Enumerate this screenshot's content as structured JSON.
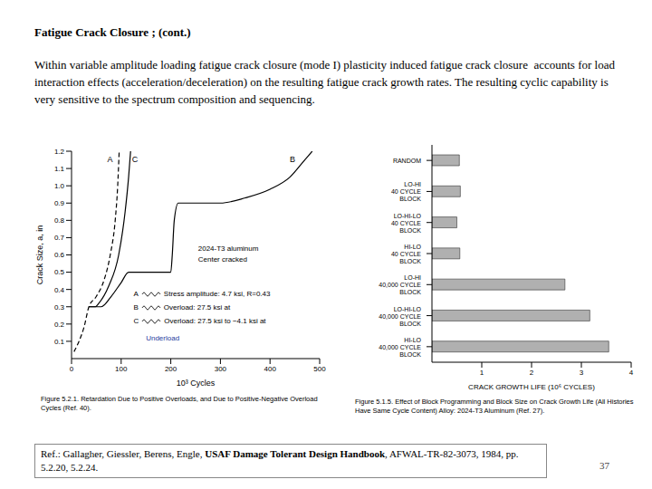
{
  "slide": {
    "title": "Fatigue Crack Closure ; (cont.)",
    "text": "Within variable amplitude loading fatigue crack closure (mode I) plasticity induced fatigue crack closure  accounts for load interaction effects (acceleration/deceleration) on the resulting fatigue crack growth rates. The resulting cyclic capability is very sensitive to the spectrum composition and sequencing.",
    "reference": {
      "authors": "Ref.: Gallagher, Giessler, Berens, Engle,",
      "book": "USAF Damage Tolerant Design Handbook",
      "rest": ", AFWAL-TR-82-3073, 1984, pp. 5.2.20, 5.2.24."
    },
    "page": 37
  },
  "chart_data": [
    {
      "type": "line",
      "x_label": "10³ Cycles",
      "y_label": "Crack Size, a, in",
      "caption": "Figure 5.2.1. Retardation Due to Positive Overloads, and Due to Positive-Negative Overload Cycles (Ref. 40).",
      "annotations": [
        "2024-T3 aluminum",
        "Center cracked",
        "Underload"
      ],
      "xlim": [
        0,
        500
      ],
      "xticks": [
        0,
        100,
        200,
        300,
        400,
        500
      ],
      "ylim": [
        0,
        1.2
      ],
      "yticks": [
        0.1,
        0.2,
        0.3,
        0.4,
        0.5,
        0.6,
        0.7,
        0.8,
        0.9,
        {
          "value": 1,
          "label": "1.0"
        },
        1.1,
        1.2
      ],
      "grid": false,
      "series": [
        {
          "name": "A",
          "description": "Stress amplitude: 4.7 ksi, R=0.43",
          "color": "#000000",
          "line_style": "dashed",
          "x": [
            5,
            15,
            25,
            35,
            50,
            65,
            78,
            88,
            93,
            96
          ],
          "values": [
            0.04,
            0.1,
            0.18,
            0.3,
            0.36,
            0.45,
            0.6,
            0.8,
            1.0,
            1.2
          ]
        },
        {
          "name": "B",
          "description": "Overload: 27.5 ksi at",
          "color": "#000000",
          "line_style": "solid",
          "x": [
            35,
            60,
            80,
            100,
            115,
            200,
            203,
            207,
            215,
            300,
            350,
            400,
            440,
            470,
            485
          ],
          "values": [
            0.3,
            0.3,
            0.36,
            0.44,
            0.5,
            0.5,
            0.6,
            0.8,
            0.9,
            0.9,
            0.93,
            0.98,
            1.05,
            1.15,
            1.2
          ]
        },
        {
          "name": "C",
          "description": "Overload: 27.5 ksi to −4.1 ksi at",
          "color": "#000000",
          "line_style": "solid",
          "x": [
            35,
            48,
            55,
            75,
            95,
            108,
            115,
            119
          ],
          "values": [
            0.3,
            0.3,
            0.32,
            0.42,
            0.6,
            0.85,
            1.05,
            1.2
          ]
        }
      ]
    },
    {
      "type": "bar",
      "orientation": "horizontal",
      "x_label": "CRACK GROWTH LIFE (10⁶ CYCLES)",
      "caption": "Figure 5.1.5. Effect of Block Programming and Block Size on Crack Growth Life (All Histories Have Same Cycle Content) Alloy: 2024-T3 Aluminum (Ref. 27).",
      "categories": [
        "RANDOM",
        "LO-HI 40 CYCLE BLOCK",
        "LO-HI-LO 40 CYCLE BLOCK",
        "HI-LO 40 CYCLE BLOCK",
        "LO-HI 40,000 CYCLE BLOCK",
        "LO-HI-LO 40,000 CYCLE BLOCK",
        "HI-LO 40,000 CYCLE BLOCK"
      ],
      "values": [
        0.55,
        0.57,
        0.5,
        0.56,
        2.67,
        3.17,
        3.55
      ],
      "color": "#b0b0b0",
      "xlim": [
        0,
        4
      ],
      "xticks": [
        1,
        2,
        3,
        4
      ],
      "grid": false
    }
  ]
}
